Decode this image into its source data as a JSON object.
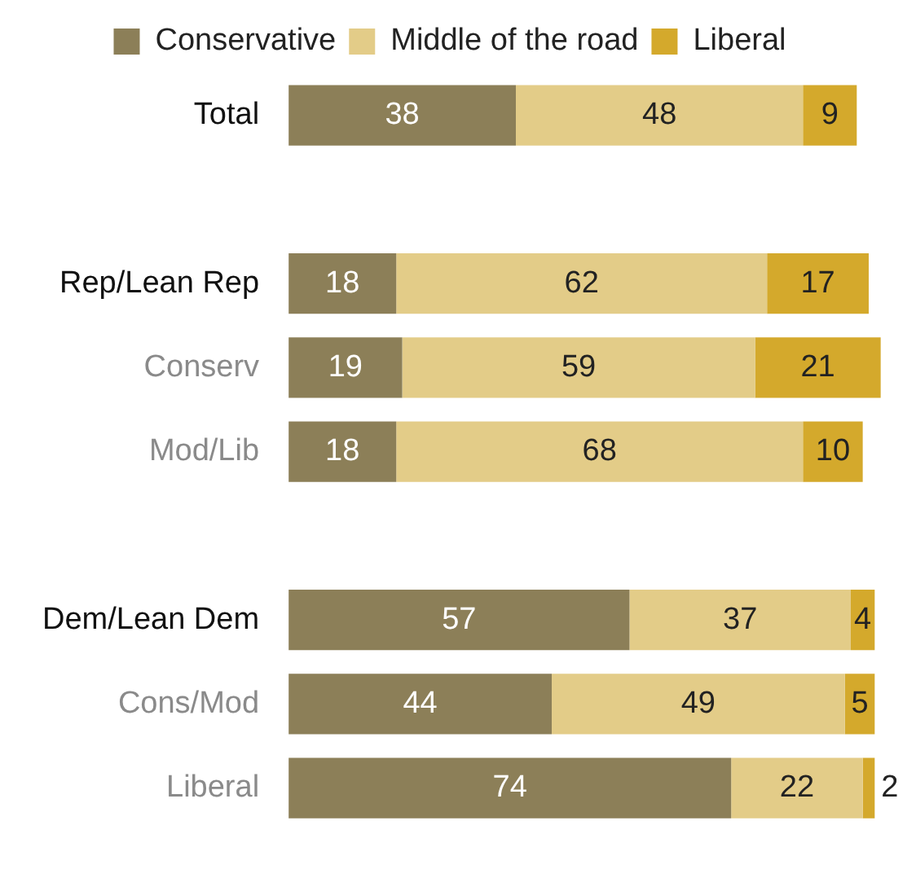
{
  "chart_data": {
    "type": "bar",
    "orientation": "horizontal",
    "stacked": true,
    "categories": [
      "Total",
      null,
      "Rep/Lean Rep",
      "Conserv",
      "Mod/Lib",
      null,
      "Dem/Lean Dem",
      "Cons/Mod",
      "Liberal"
    ],
    "series": [
      {
        "name": "Conservative",
        "color": "#8c7f58",
        "values": [
          38,
          null,
          18,
          19,
          18,
          null,
          57,
          44,
          74
        ]
      },
      {
        "name": "Middle of the road",
        "color": "#e3cc88",
        "values": [
          48,
          null,
          62,
          59,
          68,
          null,
          37,
          49,
          22
        ]
      },
      {
        "name": "Liberal",
        "color": "#d4a92c",
        "values": [
          9,
          null,
          17,
          21,
          10,
          null,
          4,
          5,
          2
        ]
      }
    ],
    "xlim": [
      0,
      100
    ],
    "data_labels": true,
    "legend": "top",
    "grid": false,
    "tick_labels": "y"
  }
}
